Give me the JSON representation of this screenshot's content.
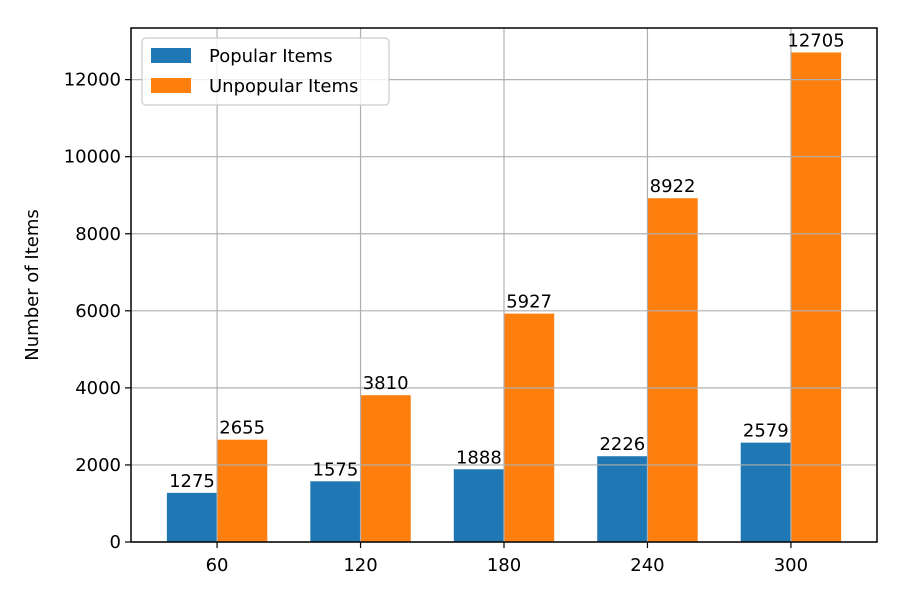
{
  "chart_data": {
    "type": "bar",
    "categories": [
      "60",
      "120",
      "180",
      "240",
      "300"
    ],
    "series": [
      {
        "name": "Popular Items",
        "values": [
          1275,
          1575,
          1888,
          2226,
          2579
        ],
        "color": "#1f77b4"
      },
      {
        "name": "Unpopular Items",
        "values": [
          2655,
          3810,
          5927,
          8922,
          12705
        ],
        "color": "#ff7f0e"
      }
    ],
    "title": "",
    "xlabel": "",
    "ylabel": "Number of Items",
    "ylim": [
      0,
      13340
    ],
    "yticks": [
      0,
      2000,
      4000,
      6000,
      8000,
      10000,
      12000
    ],
    "grid": true,
    "legend_position": "top-left",
    "data_labels": true
  }
}
